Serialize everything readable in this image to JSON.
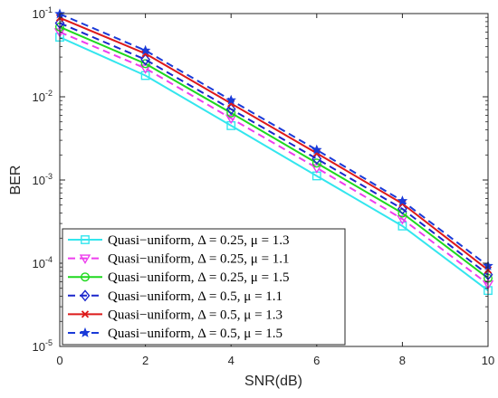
{
  "chart_data": {
    "type": "line",
    "title": "",
    "xlabel": "SNR(dB)",
    "ylabel": "BER",
    "xlim": [
      0,
      10
    ],
    "ylim": [
      1e-05,
      0.1
    ],
    "yscale": "log",
    "grid": false,
    "legend_position": "bottom-left",
    "x": [
      0,
      2,
      4,
      6,
      8,
      10
    ],
    "x_tick_labels": [
      "0",
      "2",
      "4",
      "6",
      "8",
      "10"
    ],
    "y_ticks": [
      {
        "value": 0.1,
        "base": "10",
        "exp": "-1"
      },
      {
        "value": 0.01,
        "base": "10",
        "exp": "-2"
      },
      {
        "value": 0.001,
        "base": "10",
        "exp": "-3"
      },
      {
        "value": 0.0001,
        "base": "10",
        "exp": "-4"
      },
      {
        "value": 1e-05,
        "base": "10",
        "exp": "-5"
      }
    ],
    "series": [
      {
        "name": "Quasi−uniform, Δ = 0.25, μ = 1.3",
        "color": "#33e6ee",
        "dash": "solid",
        "marker": "square",
        "values": [
          0.052,
          0.018,
          0.0045,
          0.00112,
          0.00028,
          4.7e-05
        ]
      },
      {
        "name": "Quasi−uniform, Δ = 0.25, μ = 1.1",
        "color": "#ee3eee",
        "dash": "dashed",
        "marker": "triangle-down",
        "values": [
          0.06,
          0.022,
          0.0055,
          0.0014,
          0.00034,
          5.6e-05
        ]
      },
      {
        "name": "Quasi−uniform, Δ = 0.25, μ = 1.5",
        "color": "#1ed81e",
        "dash": "solid",
        "marker": "circle",
        "values": [
          0.069,
          0.025,
          0.0064,
          0.0016,
          0.0004,
          6.6e-05
        ]
      },
      {
        "name": "Quasi−uniform, Δ = 0.5, μ = 1.1",
        "color": "#1a26cc",
        "dash": "dashed",
        "marker": "diamond",
        "values": [
          0.077,
          0.028,
          0.0071,
          0.0018,
          0.00045,
          7.3e-05
        ]
      },
      {
        "name": "Quasi−uniform, Δ = 0.5, μ = 1.3",
        "color": "#dd1a1a",
        "dash": "solid",
        "marker": "x",
        "values": [
          0.089,
          0.033,
          0.0083,
          0.0021,
          0.00052,
          8.3e-05
        ]
      },
      {
        "name": "Quasi−uniform, Δ = 0.5, μ = 1.5",
        "color": "#1a3ad8",
        "dash": "dashed",
        "marker": "star",
        "values": [
          0.099,
          0.036,
          0.0091,
          0.0023,
          0.00056,
          9.3e-05
        ]
      }
    ]
  }
}
